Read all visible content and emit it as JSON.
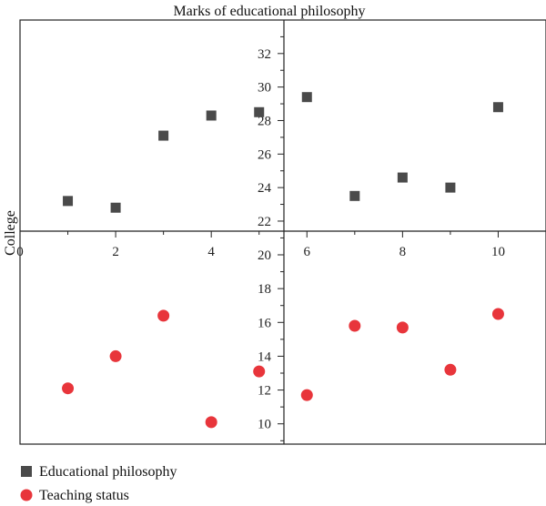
{
  "chart_data": {
    "type": "scatter",
    "title": "Marks of educational philosophy",
    "ylabel": "College",
    "xlabel": "",
    "x_axis": {
      "range": [
        0,
        11
      ],
      "ticks": [
        0,
        2,
        4,
        6,
        8,
        10
      ],
      "tick_labels": [
        "0",
        "2",
        "4",
        "6",
        "8",
        "10"
      ]
    },
    "y_axis_upper": {
      "range": [
        21.4,
        34
      ],
      "ticks": [
        22,
        24,
        26,
        28,
        30,
        32
      ],
      "tick_labels": [
        "22",
        "24",
        "26",
        "28",
        "30",
        "32"
      ]
    },
    "y_axis_lower": {
      "range": [
        8.8,
        21.4
      ],
      "ticks": [
        10,
        12,
        14,
        16,
        18,
        20
      ],
      "tick_labels": [
        "10",
        "12",
        "14",
        "16",
        "18",
        "20"
      ]
    },
    "grid": false,
    "legend_position": "bottom-left",
    "series": [
      {
        "name": "Educational philosophy",
        "marker": "square",
        "color": "#4a4a4a",
        "axis": "upper",
        "x": [
          1,
          2,
          3,
          4,
          5,
          6,
          7,
          8,
          9,
          10
        ],
        "y": [
          23.2,
          22.8,
          27.1,
          28.3,
          28.5,
          29.4,
          23.5,
          24.6,
          24.0,
          28.8
        ]
      },
      {
        "name": "Teaching status",
        "marker": "circle",
        "color": "#e8353b",
        "axis": "lower",
        "x": [
          1,
          2,
          3,
          4,
          5,
          6,
          7,
          8,
          9,
          10
        ],
        "y": [
          12.1,
          14.0,
          16.4,
          10.1,
          13.1,
          11.7,
          15.8,
          15.7,
          13.2,
          16.5
        ]
      }
    ]
  }
}
